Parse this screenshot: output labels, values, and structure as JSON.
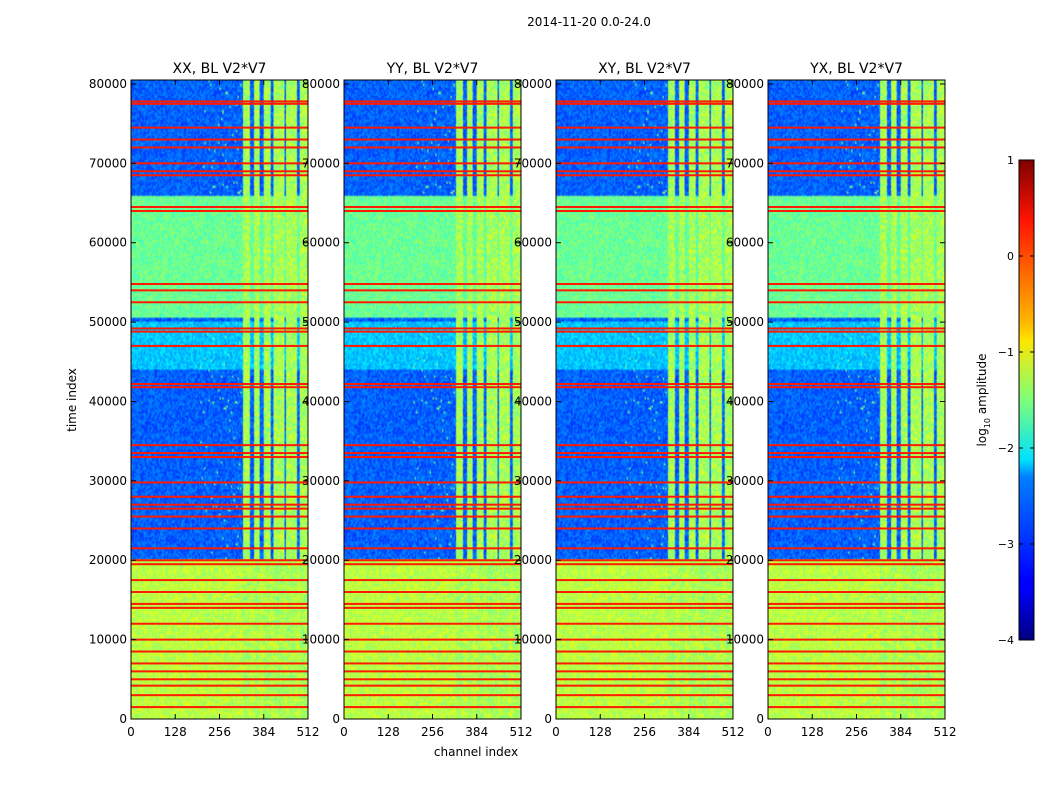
{
  "chart_data": {
    "type": "heatmap",
    "suptitle": "2014-11-20 0.0-24.0",
    "panels": [
      {
        "title": "XX, BL V2*V7"
      },
      {
        "title": "YY, BL V2*V7"
      },
      {
        "title": "XY, BL V2*V7"
      },
      {
        "title": "YX, BL V2*V7"
      }
    ],
    "xlabel": "channel index",
    "ylabel": "time index",
    "xlim": [
      0,
      512
    ],
    "ylim": [
      0,
      80500
    ],
    "xticks": [
      0,
      128,
      256,
      384,
      512
    ],
    "yticks": [
      0,
      10000,
      20000,
      30000,
      40000,
      50000,
      60000,
      70000,
      80000
    ],
    "colorbar": {
      "label": "log10 amplitude",
      "label_main": "log",
      "label_sub": "10",
      "label_rest": " amplitude",
      "min": -4,
      "max": 1,
      "ticks": [
        1,
        0,
        -1,
        -2,
        -3,
        -4
      ],
      "tick_labels": [
        "1",
        "0",
        "−1",
        "−2",
        "−3",
        "−4"
      ],
      "colormap": "jet"
    },
    "background_level": -2.9,
    "band_channels": [
      [
        325,
        345
      ],
      [
        355,
        372
      ],
      [
        385,
        403
      ],
      [
        412,
        442
      ],
      [
        450,
        480
      ],
      [
        488,
        512
      ]
    ],
    "flagged_rows": [
      1500,
      3000,
      4200,
      5000,
      6000,
      7000,
      8500,
      10000,
      12000,
      14000,
      14500,
      16000,
      17500,
      19500,
      20000,
      21500,
      24000,
      25500,
      26500,
      27000,
      28000,
      29800,
      33000,
      33500,
      34500,
      41800,
      42200,
      47000,
      48800,
      49200,
      52500,
      54000,
      54800,
      64000,
      64500,
      68500,
      69000,
      70000,
      72000,
      73000,
      74500,
      77500,
      77800
    ],
    "bright_blocks": [
      [
        50500,
        66000,
        -1.6
      ],
      [
        44000,
        50000,
        -2.4
      ],
      [
        0,
        20000,
        -1.2
      ]
    ]
  }
}
